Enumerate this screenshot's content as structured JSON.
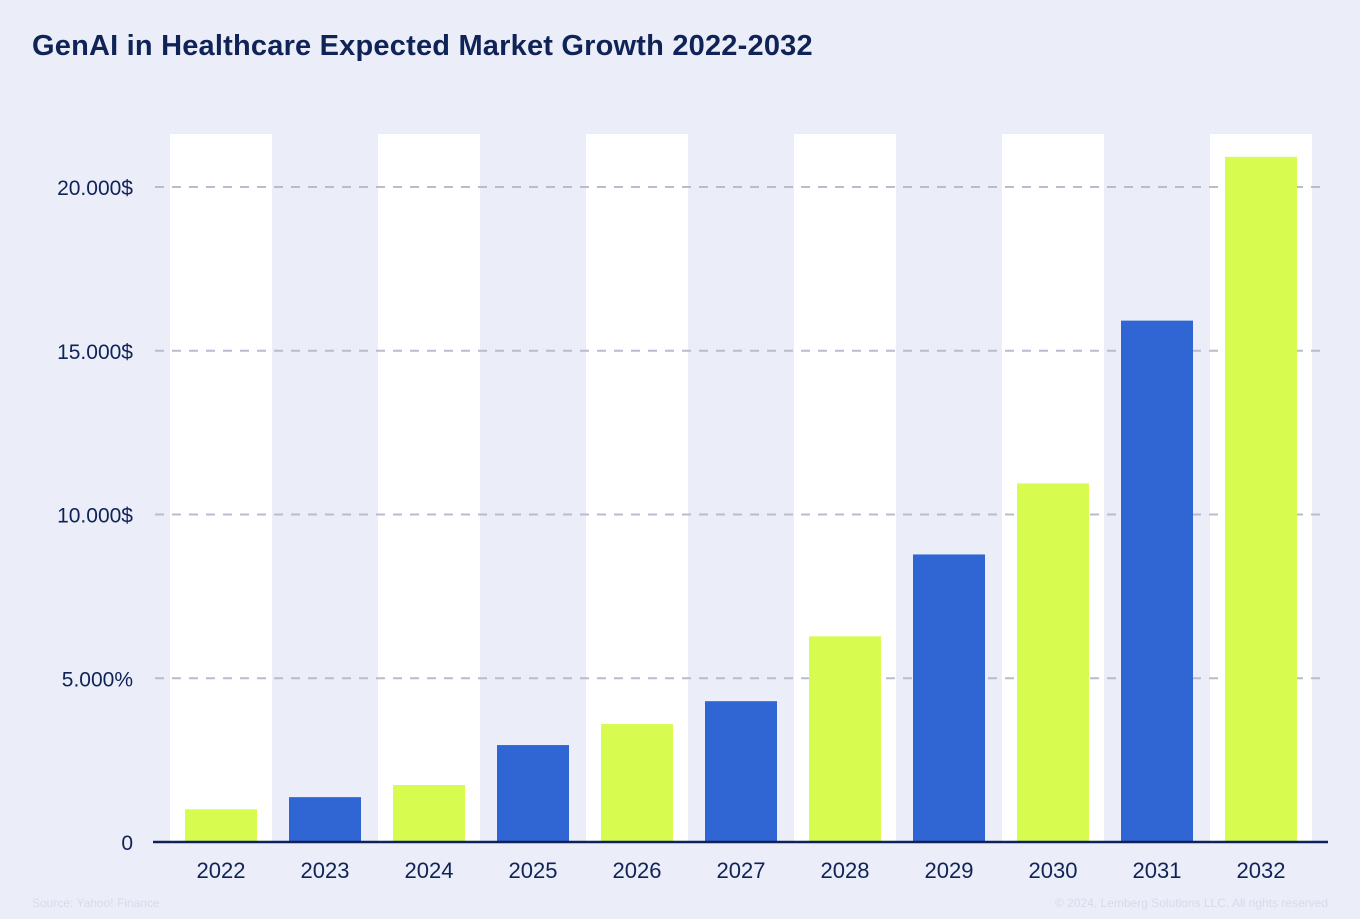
{
  "title": "GenAI in Healthcare Expected Market Growth 2022-2032",
  "footer": {
    "source": "Source: Yahoo! Finance",
    "copyright": "© 2024, Lemberg Solutions LLC. All rights reserved"
  },
  "colors": {
    "lime": "#d8fb50",
    "blue": "#3066d3",
    "axis": "#0f2357",
    "grid": "#b7bccf",
    "band": "#ffffff"
  },
  "chart_data": {
    "type": "bar",
    "title": "GenAI in Healthcare Expected Market Growth 2022-2032",
    "xlabel": "",
    "ylabel": "",
    "categories": [
      "2022",
      "2023",
      "2024",
      "2025",
      "2026",
      "2027",
      "2028",
      "2029",
      "2030",
      "2031",
      "2032"
    ],
    "values": [
      1000,
      1370,
      1740,
      2960,
      3600,
      4300,
      6280,
      8780,
      10950,
      15920,
      20920
    ],
    "bar_colors": [
      "lime",
      "blue",
      "lime",
      "blue",
      "lime",
      "blue",
      "lime",
      "blue",
      "lime",
      "blue",
      "lime"
    ],
    "ylim": [
      0,
      20000
    ],
    "yticks": [
      0,
      5000,
      10000,
      15000,
      20000
    ],
    "ytick_labels": [
      "0",
      "5.000%",
      "10.000$",
      "15.000$",
      "20.000$"
    ],
    "grid": true,
    "legend": "none"
  }
}
